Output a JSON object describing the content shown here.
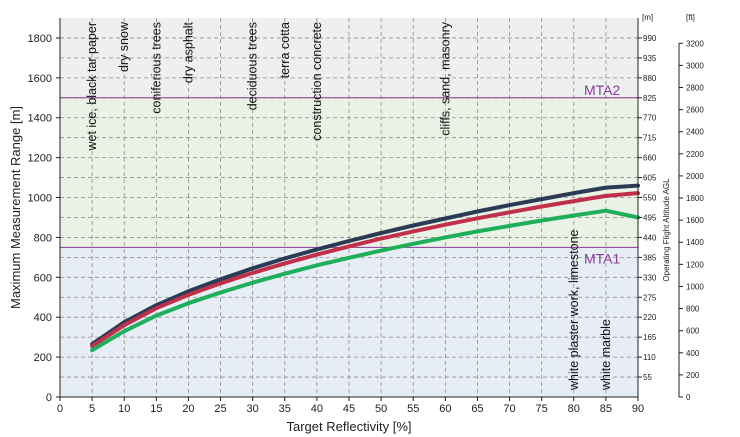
{
  "chart_data": {
    "type": "line",
    "xlabel": "Target Reflectivity [%]",
    "ylabel": "Maximum Measurement Range [m]",
    "xlim": [
      0,
      90
    ],
    "ylim": [
      0,
      1900
    ],
    "x_ticks": [
      0,
      5,
      10,
      15,
      20,
      25,
      30,
      35,
      40,
      45,
      50,
      55,
      60,
      65,
      70,
      75,
      80,
      85,
      90
    ],
    "y_ticks": [
      0,
      200,
      400,
      600,
      800,
      1000,
      1200,
      1400,
      1600,
      1800
    ],
    "grid": "dashed",
    "series": [
      {
        "color": "#2b3a55",
        "x": [
          5,
          10,
          15,
          20,
          25,
          30,
          35,
          40,
          45,
          50,
          55,
          60,
          65,
          70,
          75,
          80,
          85,
          90
        ],
        "values": [
          265,
          375,
          460,
          530,
          590,
          645,
          695,
          740,
          782,
          822,
          860,
          895,
          930,
          962,
          992,
          1022,
          1050,
          1060
        ]
      },
      {
        "color": "#c0304a",
        "x": [
          5,
          10,
          15,
          20,
          25,
          30,
          35,
          40,
          45,
          50,
          55,
          60,
          65,
          70,
          75,
          80,
          85,
          90
        ],
        "values": [
          255,
          360,
          445,
          512,
          570,
          622,
          670,
          714,
          755,
          794,
          830,
          864,
          896,
          926,
          955,
          982,
          1008,
          1022
        ]
      },
      {
        "color": "#1fae5a",
        "x": [
          5,
          10,
          15,
          20,
          25,
          30,
          35,
          40,
          45,
          50,
          55,
          60,
          65,
          70,
          75,
          80,
          85,
          90
        ],
        "values": [
          235,
          330,
          408,
          470,
          524,
          573,
          618,
          660,
          698,
          734,
          768,
          800,
          830,
          858,
          885,
          910,
          934,
          900
        ]
      }
    ],
    "material_labels": [
      {
        "x": 5,
        "text": "wet ice, black tar paper"
      },
      {
        "x": 10,
        "text": "dry snow"
      },
      {
        "x": 15,
        "text": "coniferious trees"
      },
      {
        "x": 20,
        "text": "dry asphalt"
      },
      {
        "x": 30,
        "text": "deciduous trees"
      },
      {
        "x": 35,
        "text": "terra cotta"
      },
      {
        "x": 40,
        "text": "construction concrete"
      },
      {
        "x": 60,
        "text": "cliffs, sand, masonry"
      },
      {
        "x": 80,
        "text": "white plaster work, limestone"
      },
      {
        "x": 85,
        "text": "white marble"
      }
    ],
    "mta": [
      {
        "label": "MTA1",
        "y": 750
      },
      {
        "label": "MTA2",
        "y": 1500
      }
    ],
    "zone_colors": {
      "mta1_zone": "#e6edf4",
      "mta2_zone": "#eaf2e6",
      "upper_zone": "#edf0ee"
    },
    "secondary_axis_m": {
      "unit": "[m]",
      "ticks": [
        55,
        110,
        165,
        220,
        275,
        330,
        385,
        440,
        495,
        550,
        605,
        660,
        715,
        770,
        825,
        880,
        935,
        990
      ]
    },
    "secondary_axis_ft": {
      "unit": "[ft]",
      "title": "Operating Flight Altitude AGL",
      "ticks": [
        0,
        200,
        400,
        600,
        800,
        1000,
        1200,
        1400,
        1600,
        1800,
        2000,
        2200,
        2400,
        2600,
        2800,
        3000,
        3200
      ]
    }
  }
}
